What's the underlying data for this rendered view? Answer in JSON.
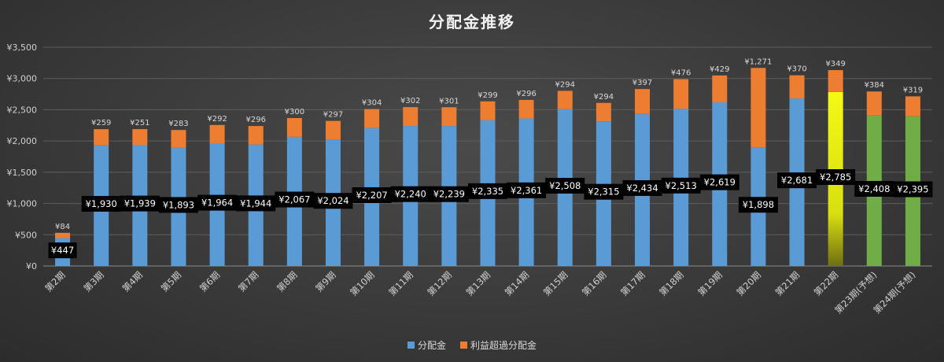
{
  "chart_data": {
    "type": "bar",
    "stacked": true,
    "title": "分配金推移",
    "xlabel": "",
    "ylabel": "",
    "ylim": [
      0,
      3500
    ],
    "y_ticks": [
      "¥0",
      "¥500",
      "¥1,000",
      "¥1,500",
      "¥2,000",
      "¥2,500",
      "¥3,000",
      "¥3,500"
    ],
    "grid": true,
    "legend_position": "bottom",
    "categories": [
      "第2期",
      "第3期",
      "第4期",
      "第5期",
      "第6期",
      "第7期",
      "第8期",
      "第9期",
      "第10期",
      "第11期",
      "第12期",
      "第13期",
      "第14期",
      "第15期",
      "第16期",
      "第17期",
      "第18期",
      "第19期",
      "第20期",
      "第21期",
      "第22期",
      "第23期(予想)",
      "第24期(予想)"
    ],
    "series": [
      {
        "name": "分配金",
        "color": "#5b9bd5",
        "values": [
          447,
          1930,
          1939,
          1893,
          1964,
          1944,
          2067,
          2024,
          2207,
          2240,
          2239,
          2335,
          2361,
          2508,
          2315,
          2434,
          2513,
          2619,
          1898,
          2681,
          2785,
          2408,
          2395
        ],
        "labels": [
          "¥447",
          "¥1,930",
          "¥1,939",
          "¥1,893",
          "¥1,964",
          "¥1,944",
          "¥2,067",
          "¥2,024",
          "¥2,207",
          "¥2,240",
          "¥2,239",
          "¥2,335",
          "¥2,361",
          "¥2,508",
          "¥2,315",
          "¥2,434",
          "¥2,513",
          "¥2,619",
          "¥1,898",
          "¥2,681",
          "¥2,785",
          "¥2,408",
          "¥2,395"
        ]
      },
      {
        "name": "利益超過分配金",
        "color": "#ed7d31",
        "values": [
          84,
          259,
          251,
          283,
          292,
          296,
          300,
          297,
          304,
          302,
          301,
          299,
          296,
          294,
          294,
          397,
          476,
          429,
          1271,
          370,
          349,
          384,
          319
        ],
        "labels": [
          "¥84",
          "¥259",
          "¥251",
          "¥283",
          "¥292",
          "¥296",
          "¥300",
          "¥297",
          "¥304",
          "¥302",
          "¥301",
          "¥299",
          "¥296",
          "¥294",
          "¥294",
          "¥397",
          "¥476",
          "¥429",
          "¥1,271",
          "¥370",
          "¥349",
          "¥384",
          "¥319"
        ]
      }
    ],
    "base_bar_colors": [
      "#5b9bd5",
      "#5b9bd5",
      "#5b9bd5",
      "#5b9bd5",
      "#5b9bd5",
      "#5b9bd5",
      "#5b9bd5",
      "#5b9bd5",
      "#5b9bd5",
      "#5b9bd5",
      "#5b9bd5",
      "#5b9bd5",
      "#5b9bd5",
      "#5b9bd5",
      "#5b9bd5",
      "#5b9bd5",
      "#5b9bd5",
      "#5b9bd5",
      "#5b9bd5",
      "#5b9bd5",
      "#e5ef12",
      "#70ad47",
      "#70ad47"
    ]
  }
}
